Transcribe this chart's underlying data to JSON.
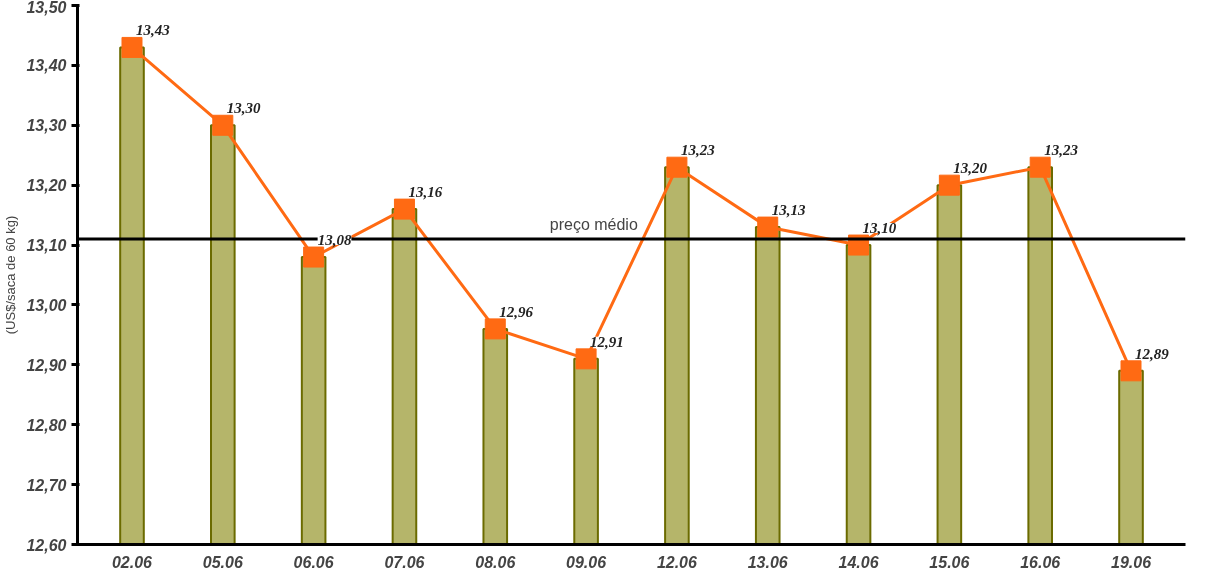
{
  "chart_data": {
    "type": "bar",
    "ylabel": "(US$/saca de 60 kg)",
    "categories": [
      "02.06",
      "05.06",
      "06.06",
      "07.06",
      "08.06",
      "09.06",
      "12.06",
      "13.06",
      "14.06",
      "15.06",
      "16.06",
      "19.06"
    ],
    "series": [
      {
        "color": "#b5b56a",
        "values": [
          13.43,
          13.3,
          13.08,
          13.16,
          12.96,
          12.91,
          13.23,
          13.13,
          13.1,
          13.2,
          13.23,
          12.89
        ]
      },
      {
        "type": "line",
        "color": "#ff6a13",
        "marker": "square",
        "values": [
          13.43,
          13.3,
          13.08,
          13.16,
          12.96,
          12.91,
          13.23,
          13.13,
          13.1,
          13.2,
          13.23,
          12.89
        ],
        "value_labels": [
          "13,43",
          "13,30",
          "13,08",
          "13,16",
          "12,96",
          "12,91",
          "13,23",
          "13,13",
          "13,10",
          "13,20",
          "13,23",
          "12,89"
        ]
      }
    ],
    "ylim": [
      12.6,
      13.5
    ],
    "yticks": [
      {
        "value": 12.6,
        "label": "12,60"
      },
      {
        "value": 12.7,
        "label": "12,70"
      },
      {
        "value": 12.8,
        "label": "12,80"
      },
      {
        "value": 12.9,
        "label": "12,90"
      },
      {
        "value": 13.0,
        "label": "13,00"
      },
      {
        "value": 13.1,
        "label": "13,10"
      },
      {
        "value": 13.2,
        "label": "13,20"
      },
      {
        "value": 13.3,
        "label": "13,30"
      },
      {
        "value": 13.4,
        "label": "13,40"
      },
      {
        "value": 13.5,
        "label": "13,50"
      }
    ],
    "ref_lines": [
      {
        "axis": "y",
        "value": 13.11,
        "label": "preço médio",
        "color": "#000000"
      }
    ],
    "grid": false
  }
}
